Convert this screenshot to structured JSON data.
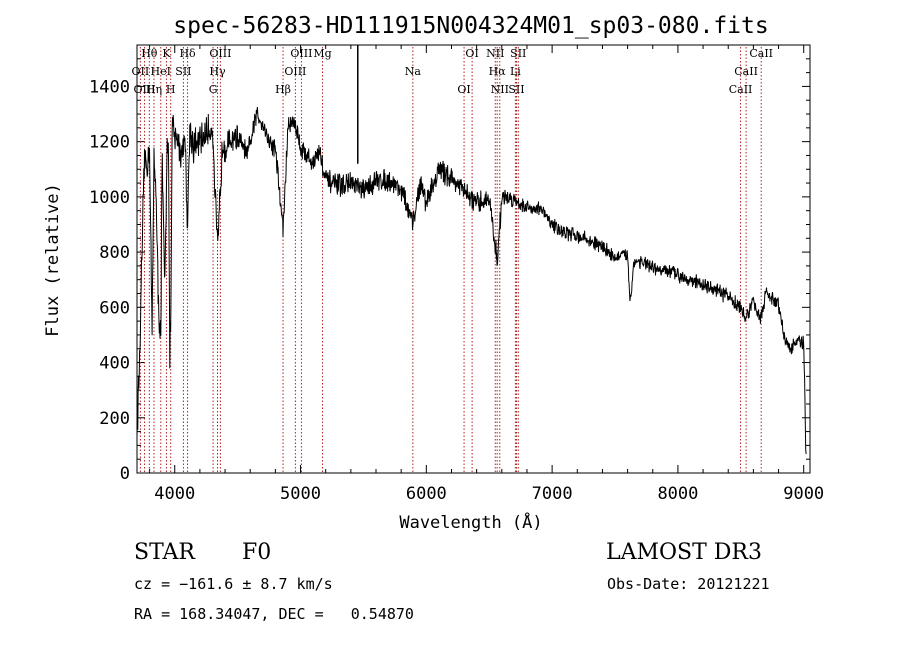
{
  "chart_data": {
    "type": "line",
    "title": "spec-56283-HD111915N004324M01_sp03-080.fits",
    "xlabel": "Wavelength (Å)",
    "ylabel": "Flux (relative)",
    "xlim": [
      3700,
      9050
    ],
    "ylim": [
      0,
      1550
    ],
    "xticks": [
      4000,
      5000,
      6000,
      7000,
      8000,
      9000
    ],
    "yticks": [
      0,
      200,
      400,
      600,
      800,
      1000,
      1200,
      1400
    ],
    "grid": false,
    "series": [
      {
        "x": [
          3700,
          3720,
          3740,
          3760,
          3780,
          3800,
          3820,
          3835,
          3850,
          3870,
          3889,
          3900,
          3920,
          3940,
          3950,
          3960,
          3970,
          3980,
          4000,
          4020,
          4050,
          4080,
          4102,
          4120,
          4150,
          4200,
          4250,
          4300,
          4340,
          4380,
          4420,
          4470,
          4520,
          4580,
          4650,
          4700,
          4750,
          4800,
          4861,
          4900,
          4950,
          5000,
          5050,
          5100,
          5150,
          5200,
          5300,
          5400,
          5500,
          5600,
          5700,
          5800,
          5893,
          5950,
          6000,
          6100,
          6200,
          6300,
          6400,
          6500,
          6563,
          6600,
          6700,
          6800,
          6900,
          7000,
          7100,
          7200,
          7300,
          7400,
          7500,
          7600,
          7620,
          7650,
          7700,
          7800,
          7900,
          8000,
          8100,
          8200,
          8300,
          8400,
          8498,
          8542,
          8600,
          8662,
          8700,
          8800,
          8850,
          8900,
          8950,
          9000,
          9020
        ],
        "y": [
          150,
          400,
          800,
          1150,
          1100,
          1200,
          500,
          1150,
          1050,
          600,
          500,
          1150,
          650,
          1200,
          1250,
          400,
          600,
          1280,
          1200,
          1220,
          1150,
          1230,
          900,
          1250,
          1180,
          1200,
          1230,
          1250,
          800,
          1200,
          1180,
          1220,
          1200,
          1150,
          1300,
          1270,
          1200,
          1180,
          880,
          1250,
          1280,
          1180,
          1150,
          1120,
          1170,
          1060,
          1040,
          1050,
          1020,
          1060,
          1060,
          1030,
          900,
          1050,
          980,
          1100,
          1070,
          1020,
          970,
          1000,
          760,
          1000,
          990,
          960,
          960,
          900,
          870,
          860,
          840,
          820,
          780,
          790,
          620,
          760,
          770,
          740,
          730,
          720,
          700,
          680,
          660,
          640,
          600,
          560,
          620,
          560,
          650,
          610,
          480,
          450,
          480,
          470,
          20
        ]
      }
    ],
    "annotations": [
      {
        "text": "Hθ",
        "x": 3798
      },
      {
        "text": "OII",
        "x": 3727
      },
      {
        "text": "OIII",
        "x": 3760
      },
      {
        "text": "K",
        "x": 3934
      },
      {
        "text": "HeI",
        "x": 3889
      },
      {
        "text": "Hη",
        "x": 3835
      },
      {
        "text": "Hδ",
        "x": 4102
      },
      {
        "text": "SII",
        "x": 4069
      },
      {
        "text": "H",
        "x": 3968
      },
      {
        "text": "OIII",
        "x": 4363
      },
      {
        "text": "Hγ",
        "x": 4340
      },
      {
        "text": "G",
        "x": 4305
      },
      {
        "text": "OIII",
        "x": 5007
      },
      {
        "text": "OIII",
        "x": 4959
      },
      {
        "text": "Hβ",
        "x": 4861
      },
      {
        "text": "Mg",
        "x": 5175
      },
      {
        "text": "Na",
        "x": 5893
      },
      {
        "text": "OI",
        "x": 6300
      },
      {
        "text": "OI",
        "x": 6364
      },
      {
        "text": "Hα",
        "x": 6563
      },
      {
        "text": "SII",
        "x": 6717
      },
      {
        "text": "NII",
        "x": 6548
      },
      {
        "text": "Li",
        "x": 6708
      },
      {
        "text": "NII",
        "x": 6584
      },
      {
        "text": "SII",
        "x": 6731
      },
      {
        "text": "CaII",
        "x": 8542
      },
      {
        "text": "CaII",
        "x": 8498
      },
      {
        "text": "CaII",
        "x": 8662
      }
    ]
  },
  "info": {
    "star_label": "STAR",
    "spectral_class": "F0",
    "survey": "LAMOST DR3",
    "cz": "cz = −161.6 ± 8.7 km/s",
    "obs_date": "Obs-Date: 20121221",
    "coords": "RA = 168.34047, DEC =   0.54870"
  },
  "colors": {
    "spectrum": "#000000",
    "line_markers": "#b22222",
    "axis": "#000000"
  }
}
